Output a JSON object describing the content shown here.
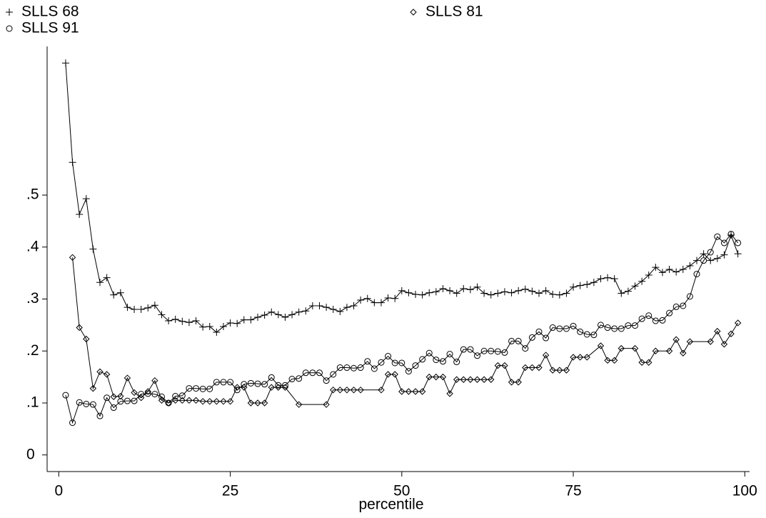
{
  "chart_data": {
    "type": "line",
    "x_label": "percentile",
    "xlim": [
      -1.7,
      100.7
    ],
    "ylim": [
      -0.032,
      0.786
    ],
    "xticks": [
      0,
      25,
      50,
      75,
      100
    ],
    "yticks": [
      0,
      {
        "value": 0.1,
        "label": ".1"
      },
      {
        "value": 0.2,
        "label": ".2"
      },
      {
        "value": 0.3,
        "label": ".3"
      },
      {
        "value": 0.4,
        "label": ".4"
      },
      {
        "value": 0.5,
        "label": ".5"
      }
    ],
    "x": [
      1,
      2,
      3,
      4,
      5,
      6,
      7,
      8,
      9,
      10,
      11,
      12,
      13,
      14,
      15,
      16,
      17,
      18,
      19,
      20,
      21,
      22,
      23,
      24,
      25,
      26,
      27,
      28,
      29,
      30,
      31,
      32,
      33,
      34,
      35,
      36,
      37,
      38,
      39,
      40,
      41,
      42,
      43,
      44,
      45,
      46,
      47,
      48,
      49,
      50,
      51,
      52,
      53,
      54,
      55,
      56,
      57,
      58,
      59,
      60,
      61,
      62,
      63,
      64,
      65,
      66,
      67,
      68,
      69,
      70,
      71,
      72,
      73,
      74,
      75,
      76,
      77,
      78,
      79,
      80,
      81,
      82,
      83,
      84,
      85,
      86,
      87,
      88,
      89,
      90,
      91,
      92,
      93,
      94,
      95,
      96,
      97,
      98,
      99
    ],
    "series": [
      {
        "name": "SLLS 68",
        "color": "#000000",
        "marker": "plus",
        "values": [
          0.754,
          0.563,
          0.463,
          0.493,
          0.396,
          0.332,
          0.341,
          0.308,
          0.312,
          0.284,
          0.28,
          0.28,
          0.283,
          0.288,
          0.27,
          0.258,
          0.261,
          0.257,
          0.255,
          0.258,
          0.246,
          0.247,
          0.236,
          0.247,
          0.254,
          0.253,
          0.26,
          0.26,
          0.265,
          0.269,
          0.275,
          0.27,
          0.265,
          0.27,
          0.275,
          0.277,
          0.287,
          0.287,
          0.284,
          0.28,
          0.276,
          0.284,
          0.287,
          0.298,
          0.301,
          0.293,
          0.293,
          0.302,
          0.301,
          0.316,
          0.312,
          0.309,
          0.308,
          0.312,
          0.314,
          0.32,
          0.316,
          0.311,
          0.32,
          0.318,
          0.323,
          0.311,
          0.308,
          0.311,
          0.314,
          0.312,
          0.316,
          0.319,
          0.315,
          0.311,
          0.316,
          0.309,
          0.308,
          0.311,
          0.323,
          0.326,
          0.328,
          0.332,
          0.339,
          0.341,
          0.339,
          0.311,
          0.315,
          0.325,
          0.334,
          0.346,
          0.361,
          0.351,
          0.357,
          0.352,
          0.357,
          0.364,
          0.374,
          0.387,
          0.374,
          0.378,
          0.385,
          0.423,
          0.387
        ]
      },
      {
        "name": "SLLS 81",
        "color": "#000000",
        "marker": "diamond",
        "x": [
          2,
          3,
          4,
          5,
          6,
          7,
          8,
          9,
          10,
          11,
          12,
          13,
          14,
          15,
          16,
          17,
          18,
          19,
          20,
          21,
          22,
          23,
          24,
          25,
          26,
          27,
          28,
          29,
          30,
          31,
          32,
          33,
          35,
          39,
          40,
          41,
          42,
          43,
          44,
          47,
          48,
          49,
          50,
          51,
          52,
          53,
          54,
          55,
          56,
          57,
          58,
          59,
          60,
          61,
          62,
          63,
          64,
          65,
          66,
          67,
          68,
          69,
          70,
          71,
          72,
          73,
          74,
          75,
          76,
          77,
          79,
          80,
          81,
          82,
          84,
          85,
          86,
          87,
          89,
          90,
          91,
          92,
          95,
          96,
          97,
          98,
          99
        ],
        "values": [
          0.38,
          0.245,
          0.223,
          0.128,
          0.16,
          0.155,
          0.112,
          0.113,
          0.148,
          0.12,
          0.11,
          0.122,
          0.143,
          0.105,
          0.1,
          0.105,
          0.105,
          0.105,
          0.105,
          0.103,
          0.103,
          0.103,
          0.103,
          0.103,
          0.13,
          0.13,
          0.1,
          0.1,
          0.1,
          0.13,
          0.13,
          0.13,
          0.097,
          0.097,
          0.125,
          0.125,
          0.125,
          0.125,
          0.125,
          0.125,
          0.155,
          0.155,
          0.122,
          0.122,
          0.122,
          0.122,
          0.15,
          0.15,
          0.15,
          0.118,
          0.145,
          0.145,
          0.145,
          0.145,
          0.145,
          0.145,
          0.172,
          0.172,
          0.14,
          0.14,
          0.168,
          0.168,
          0.168,
          0.192,
          0.163,
          0.163,
          0.163,
          0.188,
          0.188,
          0.188,
          0.21,
          0.182,
          0.182,
          0.205,
          0.205,
          0.178,
          0.178,
          0.2,
          0.2,
          0.222,
          0.196,
          0.218,
          0.218,
          0.238,
          0.213,
          0.233,
          0.254
        ]
      },
      {
        "name": "SLLS 91",
        "color": "#000000",
        "marker": "circle",
        "values": [
          0.115,
          0.062,
          0.101,
          0.098,
          0.097,
          0.075,
          0.11,
          0.091,
          0.103,
          0.104,
          0.104,
          0.117,
          0.118,
          0.117,
          0.112,
          0.1,
          0.113,
          0.114,
          0.128,
          0.128,
          0.127,
          0.127,
          0.14,
          0.14,
          0.14,
          0.125,
          0.136,
          0.138,
          0.137,
          0.136,
          0.149,
          0.134,
          0.134,
          0.146,
          0.147,
          0.158,
          0.158,
          0.158,
          0.143,
          0.155,
          0.168,
          0.168,
          0.167,
          0.168,
          0.18,
          0.166,
          0.178,
          0.19,
          0.177,
          0.177,
          0.161,
          0.172,
          0.184,
          0.196,
          0.183,
          0.18,
          0.194,
          0.179,
          0.203,
          0.203,
          0.191,
          0.2,
          0.2,
          0.199,
          0.197,
          0.219,
          0.219,
          0.205,
          0.226,
          0.237,
          0.225,
          0.245,
          0.243,
          0.243,
          0.248,
          0.237,
          0.232,
          0.231,
          0.25,
          0.245,
          0.243,
          0.243,
          0.249,
          0.249,
          0.262,
          0.268,
          0.258,
          0.259,
          0.273,
          0.285,
          0.287,
          0.305,
          0.348,
          0.374,
          0.39,
          0.42,
          0.408,
          0.425,
          0.408
        ]
      }
    ]
  }
}
